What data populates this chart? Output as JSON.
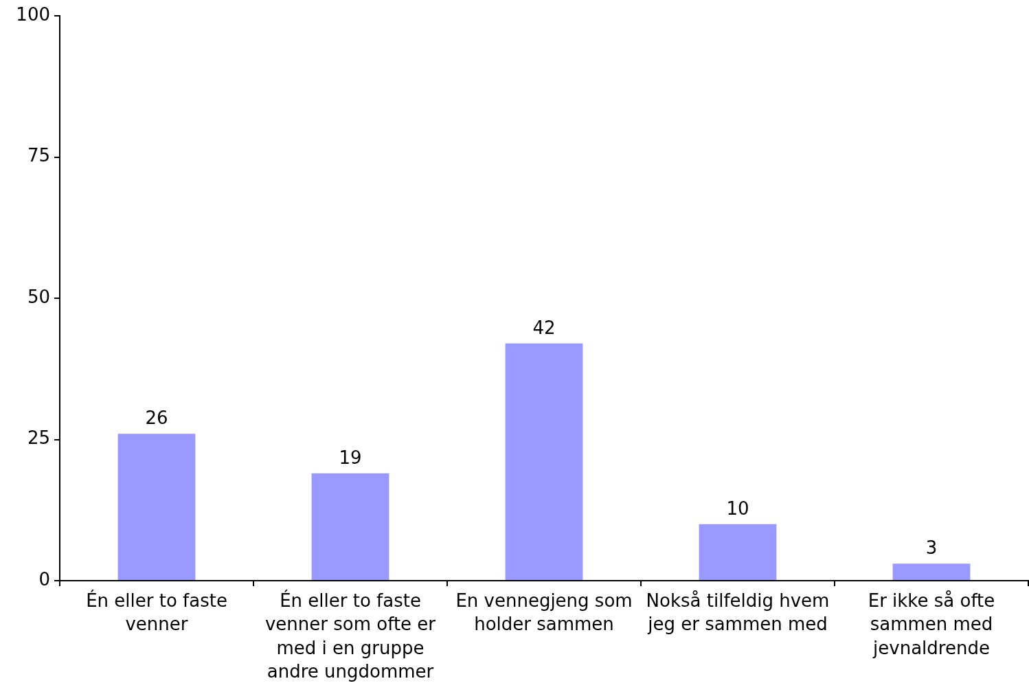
{
  "chart_data": {
    "type": "bar",
    "categories": [
      "Én eller to faste venner",
      "Én eller to faste venner som ofte er med i en gruppe andre ungdommer",
      "En vennegjeng som holder sammen",
      "Nokså tilfeldig hvem jeg er sammen med",
      "Er ikke så ofte sammen med jevnaldrende"
    ],
    "values": [
      26,
      19,
      42,
      10,
      3
    ],
    "color": "#9999ff",
    "ylim": [
      0,
      100
    ],
    "yticks": [
      0,
      25,
      50,
      75,
      100
    ],
    "data_labels": true,
    "grid": false,
    "legend": false
  }
}
